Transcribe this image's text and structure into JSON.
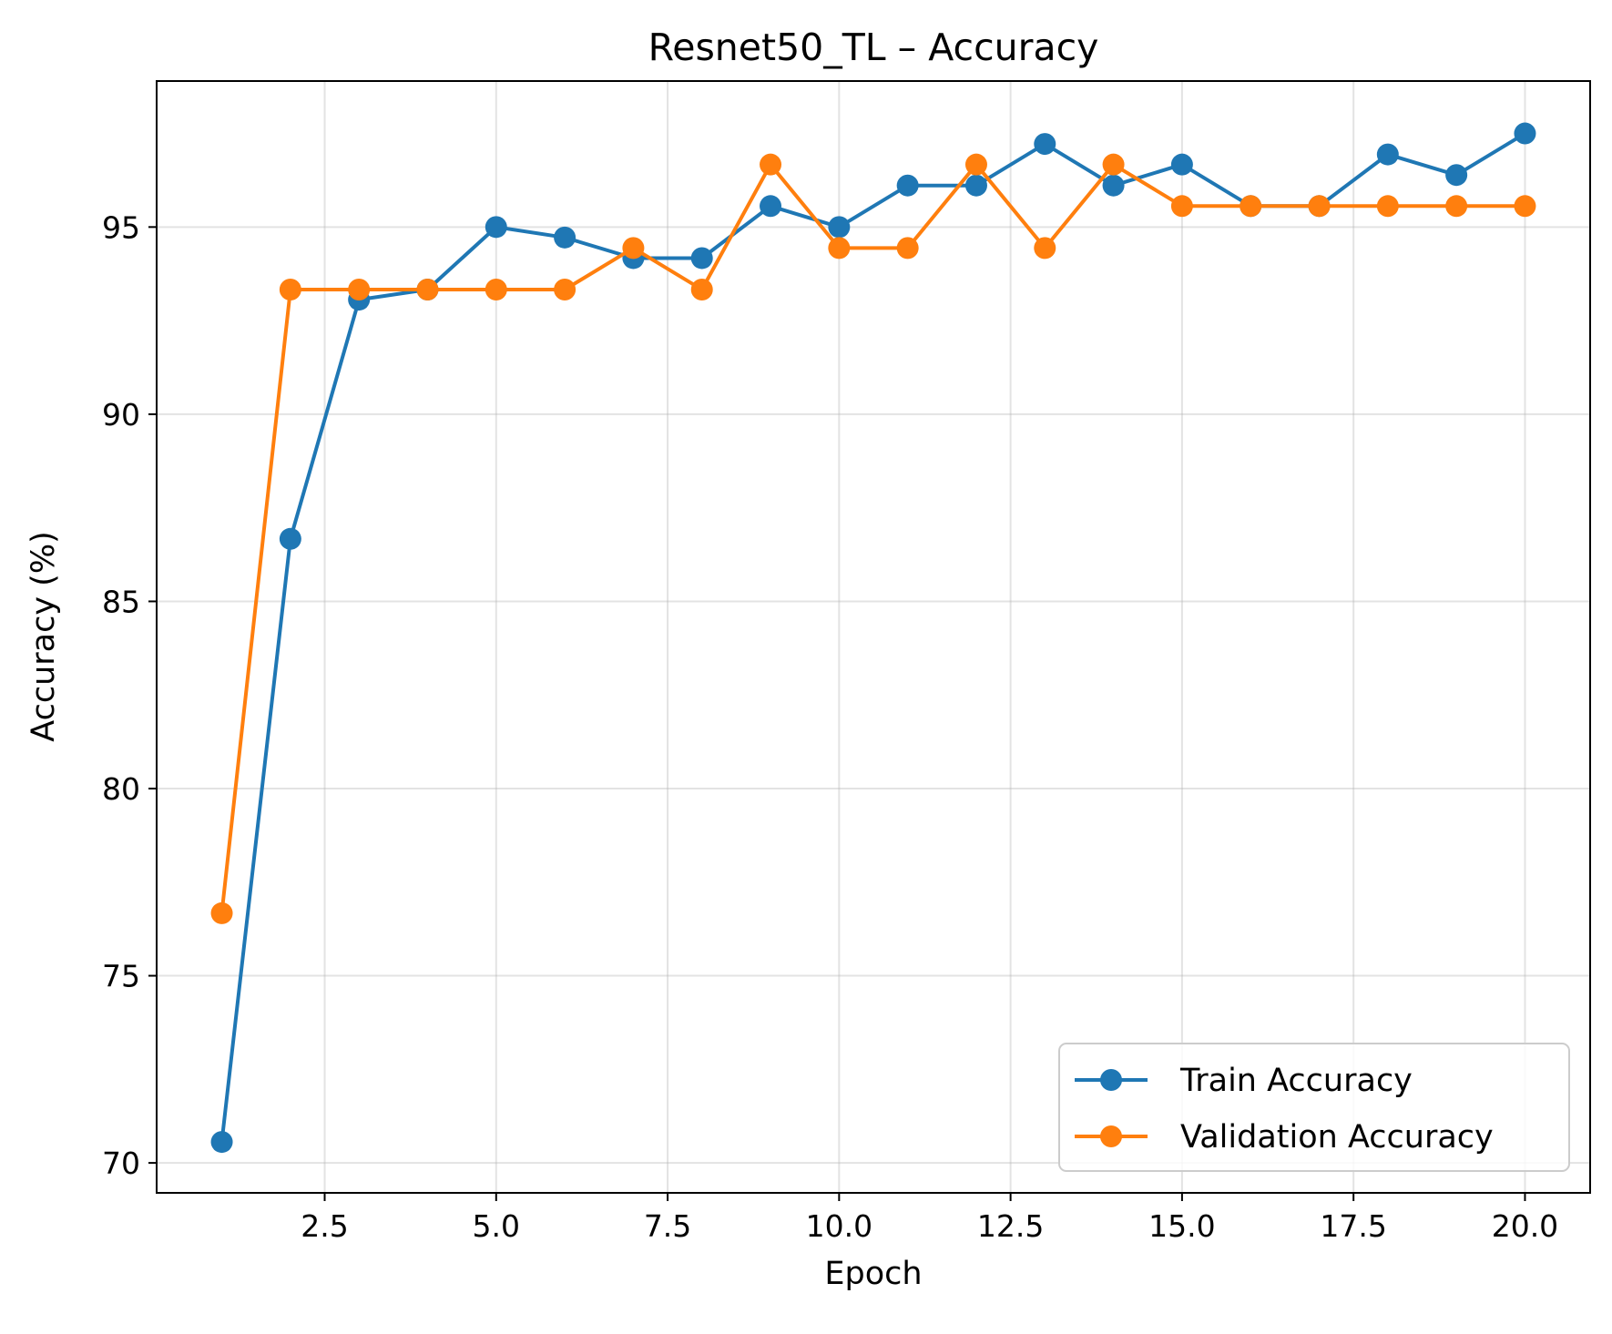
{
  "chart_data": {
    "type": "line",
    "title": "Resnet50_TL – Accuracy",
    "xlabel": "Epoch",
    "ylabel": "Accuracy (%)",
    "x": [
      1,
      2,
      3,
      4,
      5,
      6,
      7,
      8,
      9,
      10,
      11,
      12,
      13,
      14,
      15,
      16,
      17,
      18,
      19,
      20
    ],
    "series": [
      {
        "name": "Train Accuracy",
        "color": "#1f77b4",
        "values": [
          70.56,
          86.67,
          93.06,
          93.33,
          95.0,
          94.72,
          94.17,
          94.17,
          95.56,
          95.0,
          96.11,
          96.11,
          97.22,
          96.11,
          96.67,
          95.56,
          95.56,
          96.94,
          96.39,
          97.5
        ]
      },
      {
        "name": "Validation Accuracy",
        "color": "#ff7f0e",
        "values": [
          76.67,
          93.33,
          93.33,
          93.33,
          93.33,
          93.33,
          94.44,
          93.33,
          96.67,
          94.44,
          94.44,
          96.67,
          94.44,
          96.67,
          95.56,
          95.56,
          95.56,
          95.56,
          95.56,
          95.56
        ]
      }
    ],
    "xlim": [
      0.05,
      20.95
    ],
    "ylim": [
      69.2,
      98.9
    ],
    "xticks": [
      2.5,
      5.0,
      7.5,
      10.0,
      12.5,
      15.0,
      17.5,
      20.0
    ],
    "xtick_labels": [
      "2.5",
      "5.0",
      "7.5",
      "10.0",
      "12.5",
      "15.0",
      "17.5",
      "20.0"
    ],
    "yticks": [
      70,
      75,
      80,
      85,
      90,
      95
    ],
    "ytick_labels": [
      "70",
      "75",
      "80",
      "85",
      "90",
      "95"
    ],
    "grid": true,
    "legend_position": "lower-right"
  }
}
